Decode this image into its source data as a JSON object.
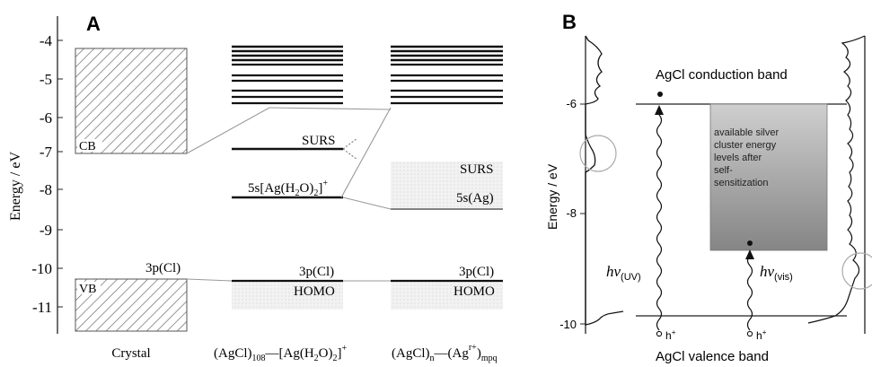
{
  "panel_a": {
    "letter": "A",
    "ylabel": "Energy / eV",
    "yticks": [
      "-4",
      "-5",
      "-6",
      "-7",
      "-8",
      "-9",
      "-10",
      "-11"
    ],
    "crystal": {
      "cb": "CB",
      "vb": "VB",
      "p3": "3p(Cl)",
      "xlabel": "Crystal"
    },
    "complex": {
      "surs": "SURS",
      "s5_pre": "5s[Ag(H",
      "s5_sub1": "2",
      "s5_mid": "O)",
      "s5_sub2": "2",
      "s5_post": "]",
      "s5_sup": "+",
      "p3": "3p(Cl)",
      "homo": "HOMO",
      "x_a": "(AgCl)",
      "x_a_sub": "108",
      "x_dash": "—",
      "x_b": "[Ag(H",
      "x_b_sub": "2",
      "x_c": "O)",
      "x_c_sub": "2",
      "x_d": "]",
      "x_d_sup": "+"
    },
    "cluster": {
      "surs": "SURS",
      "s5": "5s(Ag)",
      "p3": "3p(Cl)",
      "homo": "HOMO",
      "x_a": "(AgCl)",
      "x_a_sub": "n",
      "x_dash": "—",
      "x_b": "(Ag",
      "x_b_sup": "r+",
      "x_c": ")",
      "x_c_sub": "mpq"
    }
  },
  "panel_b": {
    "letter": "B",
    "ylabel": "Energy / eV",
    "yticks": [
      "-6",
      "-8",
      "-10"
    ],
    "conduction": "AgCl conduction band",
    "valence": "AgCl valence band",
    "box_text": [
      "available silver",
      "cluster energy",
      "levels after",
      "self-",
      "sensitization"
    ],
    "hv": "hν",
    "uv": "(UV)",
    "vis": "(vis)",
    "hole": "h",
    "hole_sup": "+"
  }
}
